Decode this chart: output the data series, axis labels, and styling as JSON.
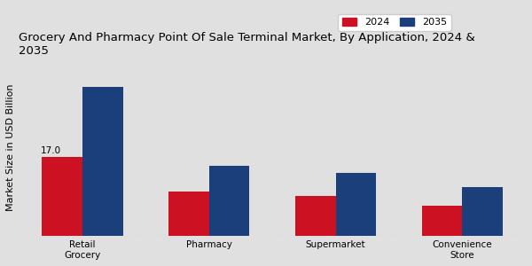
{
  "title": "Grocery And Pharmacy Point Of Sale Terminal Market, By Application, 2024 &\n2035",
  "ylabel": "Market Size in USD Billion",
  "categories": [
    "Retail\nGrocery",
    "Pharmacy",
    "Supermarket",
    "Convenience\nStore"
  ],
  "values_2024": [
    17.0,
    9.5,
    8.5,
    6.5
  ],
  "values_2035": [
    32.0,
    15.0,
    13.5,
    10.5
  ],
  "color_2024": "#cc1122",
  "color_2035": "#1a3f7a",
  "annotation_value": "17.0",
  "annotation_bar_index": 0,
  "legend_labels": [
    "2024",
    "2035"
  ],
  "background_color": "#e8e8e8",
  "bar_width": 0.32,
  "ylim": [
    0,
    38
  ],
  "title_fontsize": 9.5,
  "axis_label_fontsize": 8,
  "tick_fontsize": 7.5,
  "legend_fontsize": 8
}
